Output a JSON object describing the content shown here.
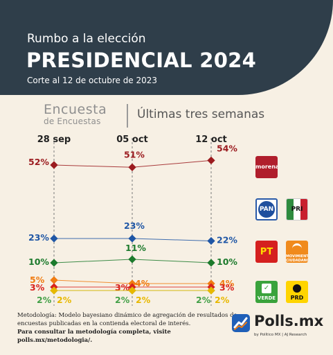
{
  "header": {
    "kicker": "Rumbo a la elección",
    "title": "PRESIDENCIAL 2024",
    "date": "Corte al 12 de octubre de 2023"
  },
  "subheader": {
    "brand_line1": "Encuesta",
    "brand_line2": "de Encuestas",
    "period": "Últimas tres semanas"
  },
  "chart_data": {
    "type": "line",
    "x": [
      "28 sep",
      "05 oct",
      "12 oct"
    ],
    "series": [
      {
        "party": "MORENA",
        "color": "#9b1b1f",
        "values": [
          52,
          51,
          54
        ],
        "labels": [
          "52%",
          "51%",
          "54%"
        ]
      },
      {
        "party": "PAN",
        "color": "#1f56a5",
        "values": [
          23,
          23,
          22
        ],
        "labels": [
          "23%",
          "23%",
          "22%"
        ]
      },
      {
        "party": "PRI",
        "color": "#1c7a2c",
        "values": [
          10,
          11,
          10
        ],
        "labels": [
          "10%",
          "11%",
          "10%"
        ]
      },
      {
        "party": "MC",
        "color": "#f07c12",
        "values": [
          5,
          4,
          4
        ],
        "labels": [
          "5%",
          "4%",
          "4%"
        ]
      },
      {
        "party": "PT",
        "color": "#d8221d",
        "values": [
          3,
          3,
          3
        ],
        "labels": [
          "3%",
          "3%",
          "3%"
        ]
      },
      {
        "party": "PVEM",
        "color": "#43a047",
        "values": [
          2,
          2,
          2
        ],
        "labels": [
          "2%",
          "2%",
          "2%"
        ]
      },
      {
        "party": "PRD",
        "color": "#e8b800",
        "values": [
          2,
          2,
          2
        ],
        "labels": [
          "2%",
          "2%",
          "2%"
        ]
      }
    ],
    "grid": "vertical dashed lines at each date"
  },
  "logos": {
    "morena": "morena",
    "pan": "PAN",
    "pri": "PRI",
    "pt": "PT",
    "mc": "MOVIMIENTO CIUDADANO",
    "verde": "VERDE",
    "prd": "PRD"
  },
  "methodology": {
    "line1": "Metodología: Modelo bayesiano dinámico de agregación de resultados de encuestas publicadas en la contienda electoral de interés.",
    "line2": "Para consultar la metodología completa, visite polls.mx/metodologia/."
  },
  "brand": {
    "name": "Polls.mx",
    "byline": "by Político MX | AJ Research"
  },
  "colors": {
    "header_bg": "#2f3e4a",
    "page_bg": "#f7f0e4"
  }
}
